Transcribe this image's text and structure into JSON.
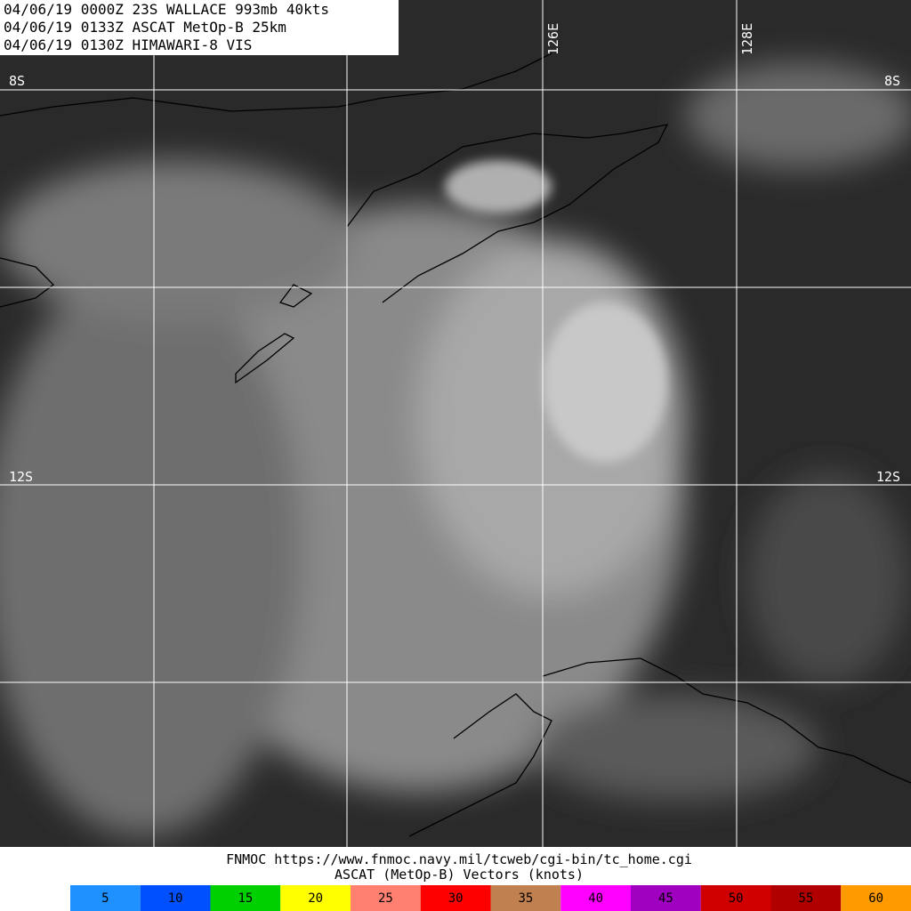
{
  "header": {
    "lines": [
      "04/06/19 0000Z  23S WALLACE 993mb 40kts",
      "04/06/19 0133Z  ASCAT MetOp-B 25km",
      "04/06/19 0130Z  HIMAWARI-8 VIS"
    ]
  },
  "map": {
    "lat_labels": [
      "8S",
      "12S"
    ],
    "lon_labels": [
      "126E",
      "128E"
    ]
  },
  "footer": {
    "lines": [
      "FNMOC https://www.fnmoc.navy.mil/tcweb/cgi-bin/tc_home.cgi",
      "ASCAT (MetOp-B) Vectors (knots)"
    ]
  },
  "legend": [
    {
      "label": "5",
      "color": "#1e90ff"
    },
    {
      "label": "10",
      "color": "#0050ff"
    },
    {
      "label": "15",
      "color": "#00d000"
    },
    {
      "label": "20",
      "color": "#ffff00"
    },
    {
      "label": "25",
      "color": "#ff8070"
    },
    {
      "label": "30",
      "color": "#ff0000"
    },
    {
      "label": "35",
      "color": "#c08050"
    },
    {
      "label": "40",
      "color": "#ff00ff"
    },
    {
      "label": "45",
      "color": "#a000c0"
    },
    {
      "label": "50",
      "color": "#d00000"
    },
    {
      "label": "55",
      "color": "#b00000"
    },
    {
      "label": "60",
      "color": "#ff9a00"
    }
  ]
}
